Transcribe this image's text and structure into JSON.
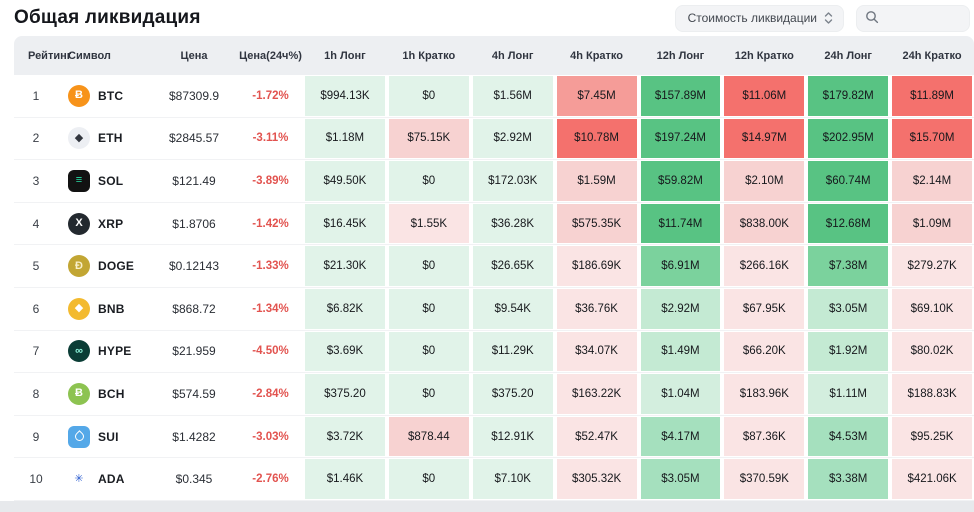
{
  "page": {
    "title": "Общая ликвидация"
  },
  "controls": {
    "sort_dropdown": {
      "label": "Стоимость ликвидации",
      "icon": "updown-chevron-icon"
    },
    "search": {
      "placeholder": "",
      "icon": "search-icon"
    }
  },
  "colors": {
    "header_bg": "#edeff2",
    "change_red": "#e2534f",
    "palette": {
      "g1": "#e1f3e9",
      "g2": "#d3eede",
      "g3": "#c4ead3",
      "g4": "#a5e0be",
      "g5": "#7bd29d",
      "g6": "#58c383",
      "r1": "#fae4e4",
      "r2": "#f7d2d1",
      "r3": "#f59c98",
      "r4": "#f4716d"
    }
  },
  "table": {
    "headers": [
      "Рейтинг",
      "Символ",
      "Цена",
      "Цена(24ч%)",
      "1h Лонг",
      "1h Кратко",
      "4h Лонг",
      "4h Кратко",
      "12h Лонг",
      "12h Кратко",
      "24h Лонг",
      "24h Кратко"
    ],
    "rows": [
      {
        "rank": "1",
        "symbol": "BTC",
        "icon": {
          "name": "btc-coin-icon",
          "shape": "circle",
          "bg": "#f7931a",
          "fg": "#ffffff",
          "glyph": "Ƀ"
        },
        "price": "$87309.9",
        "change": "-1.72%",
        "cells": [
          {
            "v": "$994.13K",
            "c": "g1"
          },
          {
            "v": "$0",
            "c": "g1"
          },
          {
            "v": "$1.56M",
            "c": "g1"
          },
          {
            "v": "$7.45M",
            "c": "r3"
          },
          {
            "v": "$157.89M",
            "c": "g6"
          },
          {
            "v": "$11.06M",
            "c": "r4"
          },
          {
            "v": "$179.82M",
            "c": "g6"
          },
          {
            "v": "$11.89M",
            "c": "r4"
          }
        ]
      },
      {
        "rank": "2",
        "symbol": "ETH",
        "icon": {
          "name": "eth-coin-icon",
          "shape": "circle",
          "bg": "#edeff3",
          "fg": "#32363e",
          "glyph": "◆"
        },
        "price": "$2845.57",
        "change": "-3.11%",
        "cells": [
          {
            "v": "$1.18M",
            "c": "g1"
          },
          {
            "v": "$75.15K",
            "c": "r2"
          },
          {
            "v": "$2.92M",
            "c": "g1"
          },
          {
            "v": "$10.78M",
            "c": "r4"
          },
          {
            "v": "$197.24M",
            "c": "g6"
          },
          {
            "v": "$14.97M",
            "c": "r4"
          },
          {
            "v": "$202.95M",
            "c": "g6"
          },
          {
            "v": "$15.70M",
            "c": "r4"
          }
        ]
      },
      {
        "rank": "3",
        "symbol": "SOL",
        "icon": {
          "name": "sol-coin-icon",
          "shape": "square",
          "bg": "#121212",
          "fg": "#27e0a6",
          "glyph": "≡"
        },
        "price": "$121.49",
        "change": "-3.89%",
        "cells": [
          {
            "v": "$49.50K",
            "c": "g1"
          },
          {
            "v": "$0",
            "c": "g1"
          },
          {
            "v": "$172.03K",
            "c": "g1"
          },
          {
            "v": "$1.59M",
            "c": "r2"
          },
          {
            "v": "$59.82M",
            "c": "g6"
          },
          {
            "v": "$2.10M",
            "c": "r2"
          },
          {
            "v": "$60.74M",
            "c": "g6"
          },
          {
            "v": "$2.14M",
            "c": "r2"
          }
        ]
      },
      {
        "rank": "4",
        "symbol": "XRP",
        "icon": {
          "name": "xrp-coin-icon",
          "shape": "circle",
          "bg": "#23292f",
          "fg": "#ffffff",
          "glyph": "X"
        },
        "price": "$1.8706",
        "change": "-1.42%",
        "cells": [
          {
            "v": "$16.45K",
            "c": "g1"
          },
          {
            "v": "$1.55K",
            "c": "r1"
          },
          {
            "v": "$36.28K",
            "c": "g1"
          },
          {
            "v": "$575.35K",
            "c": "r2"
          },
          {
            "v": "$11.74M",
            "c": "g6"
          },
          {
            "v": "$838.00K",
            "c": "r2"
          },
          {
            "v": "$12.68M",
            "c": "g6"
          },
          {
            "v": "$1.09M",
            "c": "r2"
          }
        ]
      },
      {
        "rank": "5",
        "symbol": "DOGE",
        "icon": {
          "name": "doge-coin-icon",
          "shape": "circle",
          "bg": "#c2a633",
          "fg": "#f8efc8",
          "glyph": "Ð"
        },
        "price": "$0.12143",
        "change": "-1.33%",
        "cells": [
          {
            "v": "$21.30K",
            "c": "g1"
          },
          {
            "v": "$0",
            "c": "g1"
          },
          {
            "v": "$26.65K",
            "c": "g1"
          },
          {
            "v": "$186.69K",
            "c": "r1"
          },
          {
            "v": "$6.91M",
            "c": "g5"
          },
          {
            "v": "$266.16K",
            "c": "r1"
          },
          {
            "v": "$7.38M",
            "c": "g5"
          },
          {
            "v": "$279.27K",
            "c": "r1"
          }
        ]
      },
      {
        "rank": "6",
        "symbol": "BNB",
        "icon": {
          "name": "bnb-coin-icon",
          "shape": "circle",
          "bg": "#f3ba2f",
          "fg": "#ffffff",
          "glyph": "◆"
        },
        "price": "$868.72",
        "change": "-1.34%",
        "cells": [
          {
            "v": "$6.82K",
            "c": "g1"
          },
          {
            "v": "$0",
            "c": "g1"
          },
          {
            "v": "$9.54K",
            "c": "g1"
          },
          {
            "v": "$36.76K",
            "c": "r1"
          },
          {
            "v": "$2.92M",
            "c": "g3"
          },
          {
            "v": "$67.95K",
            "c": "r1"
          },
          {
            "v": "$3.05M",
            "c": "g3"
          },
          {
            "v": "$69.10K",
            "c": "r1"
          }
        ]
      },
      {
        "rank": "7",
        "symbol": "HYPE",
        "icon": {
          "name": "hype-coin-icon",
          "shape": "circle",
          "bg": "#0b3d36",
          "fg": "#8ef6dc",
          "glyph": "∞"
        },
        "price": "$21.959",
        "change": "-4.50%",
        "cells": [
          {
            "v": "$3.69K",
            "c": "g1"
          },
          {
            "v": "$0",
            "c": "g1"
          },
          {
            "v": "$11.29K",
            "c": "g1"
          },
          {
            "v": "$34.07K",
            "c": "r1"
          },
          {
            "v": "$1.49M",
            "c": "g3"
          },
          {
            "v": "$66.20K",
            "c": "r1"
          },
          {
            "v": "$1.92M",
            "c": "g3"
          },
          {
            "v": "$80.02K",
            "c": "r1"
          }
        ]
      },
      {
        "rank": "8",
        "symbol": "BCH",
        "icon": {
          "name": "bch-coin-icon",
          "shape": "circle",
          "bg": "#8dc351",
          "fg": "#ffffff",
          "glyph": "Ƀ"
        },
        "price": "$574.59",
        "change": "-2.84%",
        "cells": [
          {
            "v": "$375.20",
            "c": "g1"
          },
          {
            "v": "$0",
            "c": "g1"
          },
          {
            "v": "$375.20",
            "c": "g1"
          },
          {
            "v": "$163.22K",
            "c": "r1"
          },
          {
            "v": "$1.04M",
            "c": "g2"
          },
          {
            "v": "$183.96K",
            "c": "r1"
          },
          {
            "v": "$1.11M",
            "c": "g2"
          },
          {
            "v": "$188.83K",
            "c": "r1"
          }
        ]
      },
      {
        "rank": "9",
        "symbol": "SUI",
        "icon": {
          "name": "sui-coin-icon",
          "shape": "square",
          "bg": "#54a8e8",
          "fg": "#ffffff",
          "glyph": "",
          "drop": true
        },
        "price": "$1.4282",
        "change": "-3.03%",
        "cells": [
          {
            "v": "$3.72K",
            "c": "g1"
          },
          {
            "v": "$878.44",
            "c": "r2"
          },
          {
            "v": "$12.91K",
            "c": "g1"
          },
          {
            "v": "$52.47K",
            "c": "r1"
          },
          {
            "v": "$4.17M",
            "c": "g4"
          },
          {
            "v": "$87.36K",
            "c": "r1"
          },
          {
            "v": "$4.53M",
            "c": "g4"
          },
          {
            "v": "$95.25K",
            "c": "r1"
          }
        ]
      },
      {
        "rank": "10",
        "symbol": "ADA",
        "icon": {
          "name": "ada-coin-icon",
          "shape": "circle",
          "bg": "#ffffff",
          "fg": "#2e5fd0",
          "glyph": "✳"
        },
        "price": "$0.345",
        "change": "-2.76%",
        "cells": [
          {
            "v": "$1.46K",
            "c": "g1"
          },
          {
            "v": "$0",
            "c": "g1"
          },
          {
            "v": "$7.10K",
            "c": "g1"
          },
          {
            "v": "$305.32K",
            "c": "r1"
          },
          {
            "v": "$3.05M",
            "c": "g4"
          },
          {
            "v": "$370.59K",
            "c": "r1"
          },
          {
            "v": "$3.38M",
            "c": "g4"
          },
          {
            "v": "$421.06K",
            "c": "r1"
          }
        ]
      }
    ]
  }
}
